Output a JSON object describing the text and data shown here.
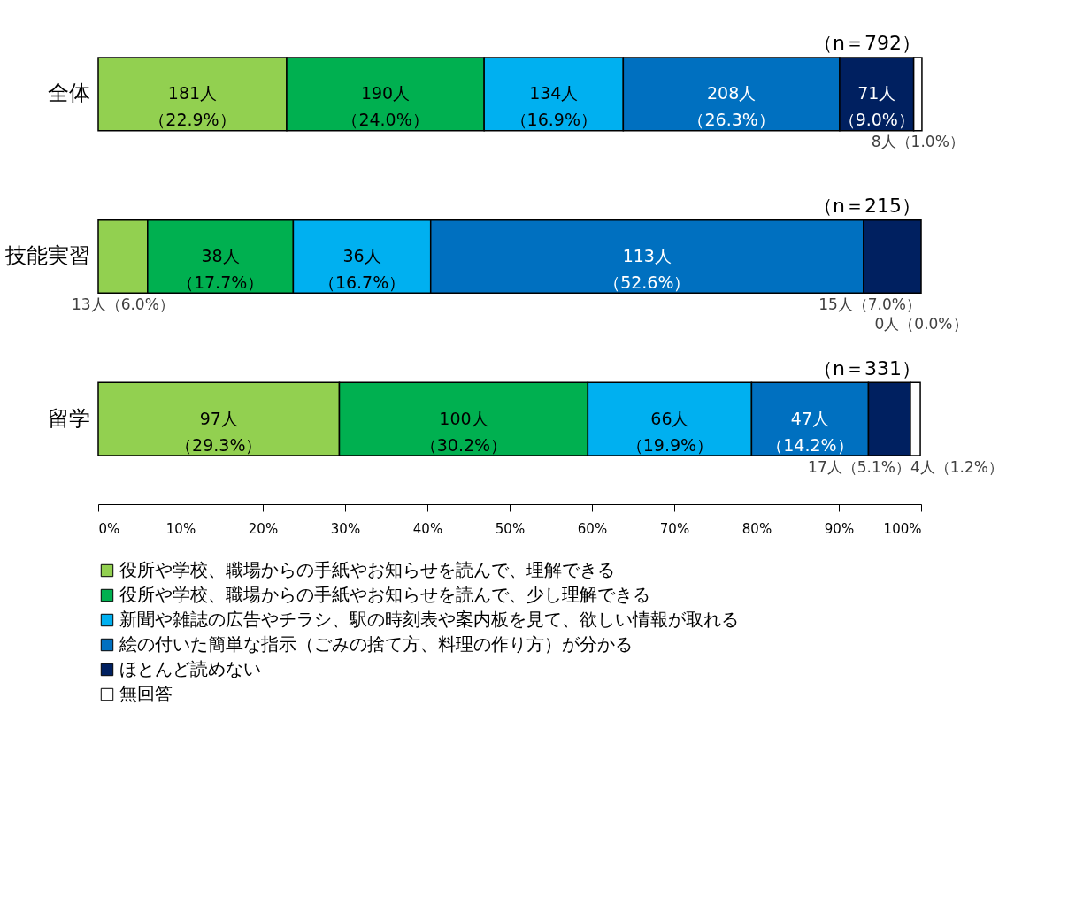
{
  "chart_data": {
    "type": "bar",
    "orientation": "horizontal",
    "stacked": true,
    "categories": [
      "全体",
      "技能実習",
      "留学"
    ],
    "series": [
      {
        "name": "役所や学校、職場からの手紙やお知らせを読んで、理解できる",
        "color": "#92d050",
        "values": [
          22.9,
          6.0,
          29.3
        ],
        "value_labels": [
          "181人（22.9%）",
          "13人（6.0%）",
          "97人（29.3%）"
        ]
      },
      {
        "name": "役所や学校、職場からの手紙やお知らせを読んで、少し理解できる",
        "color": "#00b050",
        "values": [
          24.0,
          17.7,
          30.2
        ],
        "value_labels": [
          "190人（24.0%）",
          "38人（17.7%）",
          "100人（30.2%）"
        ]
      },
      {
        "name": "新聞や雑誌の広告やチラシ、駅の時刻表や案内板を見て、欲しい情報が取れる",
        "color": "#00b0f0",
        "values": [
          16.9,
          16.7,
          19.9
        ],
        "value_labels": [
          "134人（16.9%）",
          "36人（16.7%）",
          "66人（19.9%）"
        ]
      },
      {
        "name": "絵の付いた簡単な指示（ごみの捨て方、料理の作り方）が分かる",
        "color": "#0070c0",
        "values": [
          26.3,
          52.6,
          14.2
        ],
        "value_labels": [
          "208人（26.3%）",
          "113人（52.6%）",
          "47人（14.2%）"
        ]
      },
      {
        "name": "ほとんど読めない",
        "color": "#002060",
        "values": [
          9.0,
          7.0,
          5.1
        ],
        "value_labels": [
          "71人（9.0%）",
          "15人（7.0%）",
          "17人（5.1%）"
        ]
      },
      {
        "name": "無回答",
        "color": "#ffffff",
        "values": [
          1.0,
          0.0,
          1.2
        ],
        "value_labels": [
          "8人（1.0%）",
          "0人（0.0%）",
          "4人（1.2%）"
        ]
      }
    ],
    "xlim": [
      0,
      100
    ],
    "xticks": [
      {
        "value": 0,
        "label": "0%"
      },
      {
        "value": 10,
        "label": "10%"
      },
      {
        "value": 20,
        "label": "20%"
      },
      {
        "value": 30,
        "label": "30%"
      },
      {
        "value": 40,
        "label": "40%"
      },
      {
        "value": 50,
        "label": "50%"
      },
      {
        "value": 60,
        "label": "60%"
      },
      {
        "value": 70,
        "label": "70%"
      },
      {
        "value": 80,
        "label": "80%"
      },
      {
        "value": 90,
        "label": "90%"
      },
      {
        "value": 100,
        "label": "100%"
      }
    ],
    "annotations": [
      "（n＝792）",
      "（n＝215）",
      "（n＝331）"
    ],
    "grid": false,
    "legend": "bottom"
  }
}
